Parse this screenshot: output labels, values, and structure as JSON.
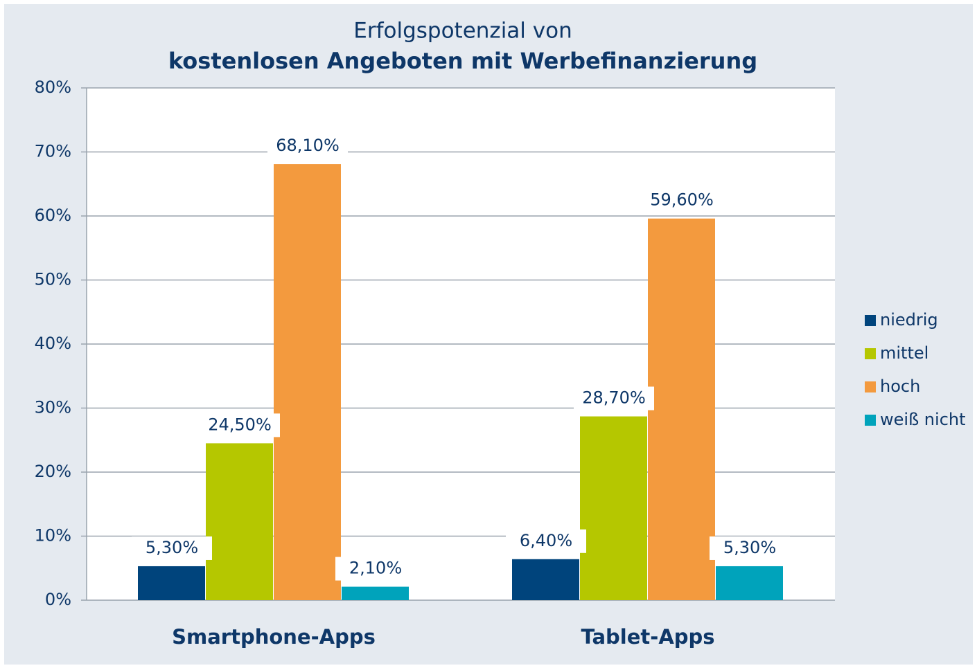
{
  "chart_data": {
    "type": "bar",
    "title": [
      "Erfolgspotenzial von",
      "kostenlosen Angeboten mit Werbefinanzierung"
    ],
    "categories": [
      "Smartphone-Apps",
      "Tablet-Apps"
    ],
    "series": [
      {
        "name": "niedrig",
        "color": "#00447c",
        "values": [
          5.3,
          6.4
        ],
        "value_labels": [
          "5,30%",
          "6,40%"
        ]
      },
      {
        "name": "mittel",
        "color": "#b5c700",
        "values": [
          24.5,
          28.7
        ],
        "value_labels": [
          "24,50%",
          "28,70%"
        ]
      },
      {
        "name": "hoch",
        "color": "#f39a3e",
        "values": [
          68.1,
          59.6
        ],
        "value_labels": [
          "68,10%",
          "59,60%"
        ]
      },
      {
        "name": "weiß nicht",
        "color": "#00a3bb",
        "values": [
          2.1,
          5.3
        ],
        "value_labels": [
          "2,10%",
          "5,30%"
        ]
      }
    ],
    "ylim": [
      0,
      80
    ],
    "yticks": [
      {
        "value": 0,
        "label": "0%"
      },
      {
        "value": 10,
        "label": "10%"
      },
      {
        "value": 20,
        "label": "20%"
      },
      {
        "value": 30,
        "label": "30%"
      },
      {
        "value": 40,
        "label": "40%"
      },
      {
        "value": 50,
        "label": "50%"
      },
      {
        "value": 60,
        "label": "60%"
      },
      {
        "value": 70,
        "label": "70%"
      },
      {
        "value": 80,
        "label": "80%"
      }
    ],
    "grid": true,
    "legend": "right"
  }
}
